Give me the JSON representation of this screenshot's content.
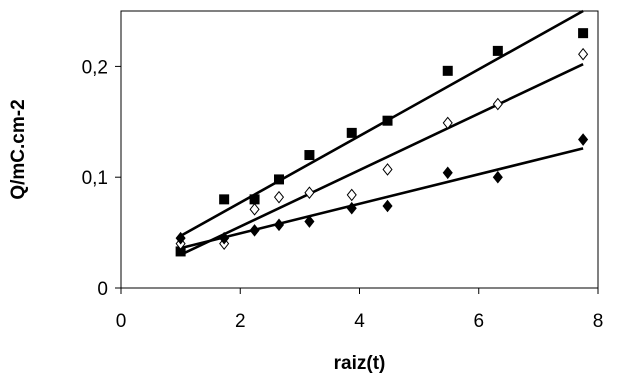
{
  "chart_data": {
    "type": "scatter",
    "title": "",
    "xlabel": "raiz(t)",
    "ylabel": "Q/mC.cm-2",
    "xlim": [
      0,
      8
    ],
    "ylim": [
      0,
      0.25
    ],
    "x_ticks": [
      0,
      2,
      4,
      6,
      8
    ],
    "x_tick_labels": [
      "0",
      "2",
      "4",
      "6",
      "8"
    ],
    "y_ticks": [
      0,
      0.1,
      0.2
    ],
    "y_tick_labels": [
      "0",
      "0,1",
      "0,2"
    ],
    "grid": false,
    "legend": false,
    "series": [
      {
        "marker": "filled-square",
        "color": "#000000",
        "x": [
          1.0,
          1.73,
          2.24,
          2.65,
          3.16,
          3.87,
          4.47,
          5.48,
          6.32,
          7.75
        ],
        "y": [
          0.033,
          0.08,
          0.08,
          0.098,
          0.12,
          0.14,
          0.151,
          0.196,
          0.214,
          0.23
        ],
        "fit_line": {
          "x": [
            1.0,
            7.75
          ],
          "y": [
            0.047,
            0.25
          ]
        }
      },
      {
        "marker": "open-diamond",
        "color": "#000000",
        "x": [
          1.0,
          1.73,
          2.24,
          2.65,
          3.16,
          3.87,
          4.47,
          5.48,
          6.32,
          7.75
        ],
        "y": [
          0.04,
          0.04,
          0.071,
          0.082,
          0.086,
          0.084,
          0.107,
          0.149,
          0.166,
          0.211
        ],
        "fit_line": {
          "x": [
            1.0,
            7.75
          ],
          "y": [
            0.03,
            0.202
          ]
        }
      },
      {
        "marker": "filled-diamond",
        "color": "#000000",
        "x": [
          1.0,
          1.73,
          2.24,
          2.65,
          3.16,
          3.87,
          4.47,
          5.48,
          6.32,
          7.75
        ],
        "y": [
          0.045,
          0.045,
          0.052,
          0.057,
          0.06,
          0.072,
          0.074,
          0.104,
          0.1,
          0.134
        ],
        "fit_line": {
          "x": [
            1.0,
            7.75
          ],
          "y": [
            0.036,
            0.126
          ]
        }
      }
    ]
  }
}
